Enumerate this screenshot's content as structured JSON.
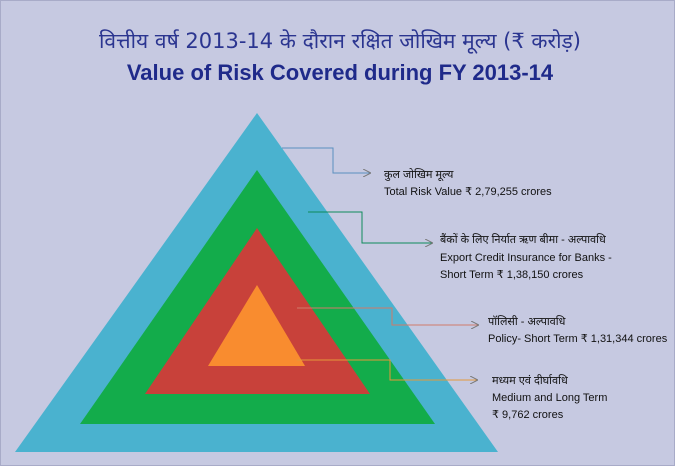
{
  "header": {
    "title_hindi": "वित्तीय वर्ष 2013-14 के दौरान रक्षित जोखिम मूल्य (₹ करोड़)",
    "title": "Value of Risk Covered during FY 2013-14"
  },
  "layers": [
    {
      "label_hindi": "कुल जोखिम मूल्य",
      "lines": [
        "Total Risk Value ₹ 2,79,255  crores"
      ]
    },
    {
      "label_hindi": "बैंकों के लिए निर्यात ऋण बीमा - अल्पावधि",
      "lines": [
        "Export Credit Insurance for Banks -",
        "Short Term ₹ 1,38,150 crores"
      ]
    },
    {
      "label_hindi": "पॉलिसी - अल्पावधि",
      "lines": [
        "Policy- Short Term ₹ 1,31,344 crores"
      ]
    },
    {
      "label_hindi": "मध्यम एवं दीर्घावधि",
      "lines": [
        "Medium and Long Term",
        "₹ 9,762 crores"
      ]
    }
  ]
}
